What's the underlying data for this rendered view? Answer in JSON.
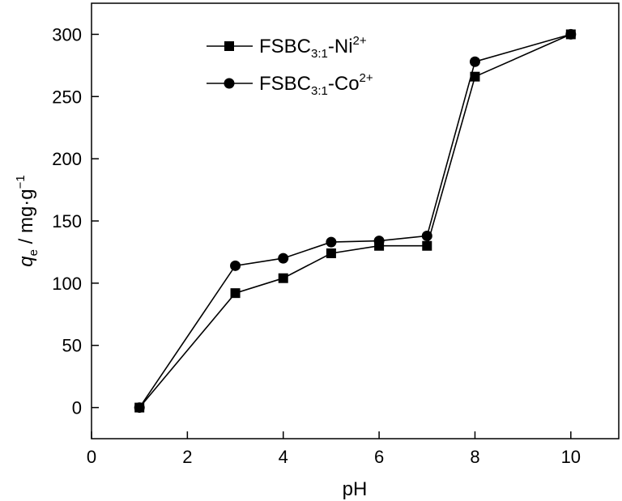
{
  "chart_data": {
    "type": "line",
    "x_axis": {
      "label": "pH",
      "ticks": [
        "0",
        "2",
        "4",
        "6",
        "8",
        "10"
      ],
      "range": [
        0,
        11
      ]
    },
    "y_axis": {
      "label_main": "q",
      "label_sub": "e",
      "label_rest": " / mg·g",
      "label_sup": "−1",
      "ticks": [
        "0",
        "50",
        "100",
        "150",
        "200",
        "250",
        "300"
      ],
      "range": [
        -25,
        325
      ]
    },
    "legend": {
      "placement": "top-left",
      "entries": [
        {
          "prefix": "FSBC",
          "sub": "3:1",
          "ion": "-Ni",
          "sup": "2+"
        },
        {
          "prefix": "FSBC",
          "sub": "3:1",
          "ion": "-Co",
          "sup": "2+"
        }
      ]
    },
    "series": [
      {
        "name": "FSBC3:1-Ni2+",
        "marker": "square",
        "color": "#000000",
        "points": [
          [
            1,
            0
          ],
          [
            3,
            92
          ],
          [
            4,
            104
          ],
          [
            5,
            124
          ],
          [
            6,
            130
          ],
          [
            7,
            130
          ],
          [
            8,
            266
          ],
          [
            10,
            300
          ]
        ]
      },
      {
        "name": "FSBC3:1-Co2+",
        "marker": "circle",
        "color": "#000000",
        "points": [
          [
            1,
            0
          ],
          [
            3,
            114
          ],
          [
            4,
            120
          ],
          [
            5,
            133
          ],
          [
            6,
            134
          ],
          [
            7,
            138
          ],
          [
            8,
            278
          ],
          [
            10,
            300
          ]
        ]
      }
    ]
  }
}
